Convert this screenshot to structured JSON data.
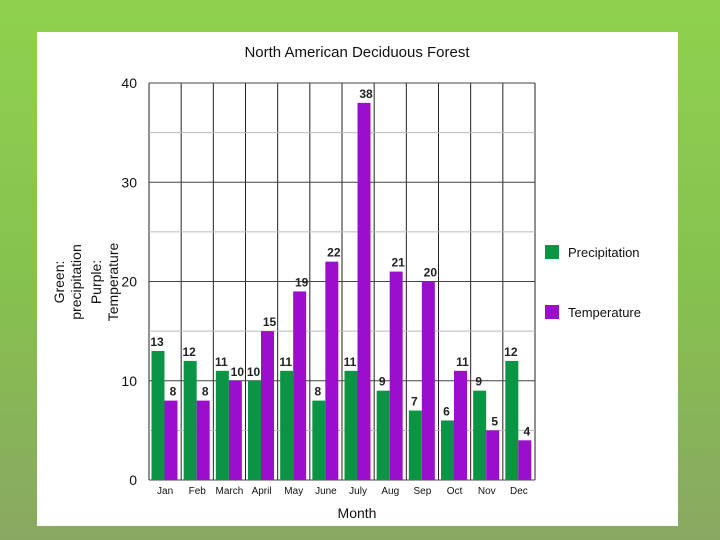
{
  "chart_data": {
    "type": "bar",
    "title": "North American Deciduous Forest",
    "xlabel": "Month",
    "ylabel": [
      "Green:",
      "precipitation",
      "Purple:",
      "Temperature"
    ],
    "ylim": [
      0,
      40
    ],
    "yticks": [
      0,
      10,
      20,
      30,
      40
    ],
    "grid": true,
    "legend_position": "right",
    "categories": [
      "Jan",
      "Feb",
      "March",
      "April",
      "May",
      "June",
      "July",
      "Aug",
      "Sep",
      "Oct",
      "Nov",
      "Dec"
    ],
    "series": [
      {
        "name": "Precipitation",
        "color": "#0b9444",
        "values": [
          13,
          12,
          11,
          10,
          11,
          8,
          11,
          9,
          7,
          6,
          9,
          12
        ]
      },
      {
        "name": "Temperature",
        "color": "#9b0fcc",
        "values": [
          8,
          8,
          10,
          15,
          19,
          22,
          38,
          21,
          20,
          11,
          5,
          4
        ]
      }
    ]
  }
}
